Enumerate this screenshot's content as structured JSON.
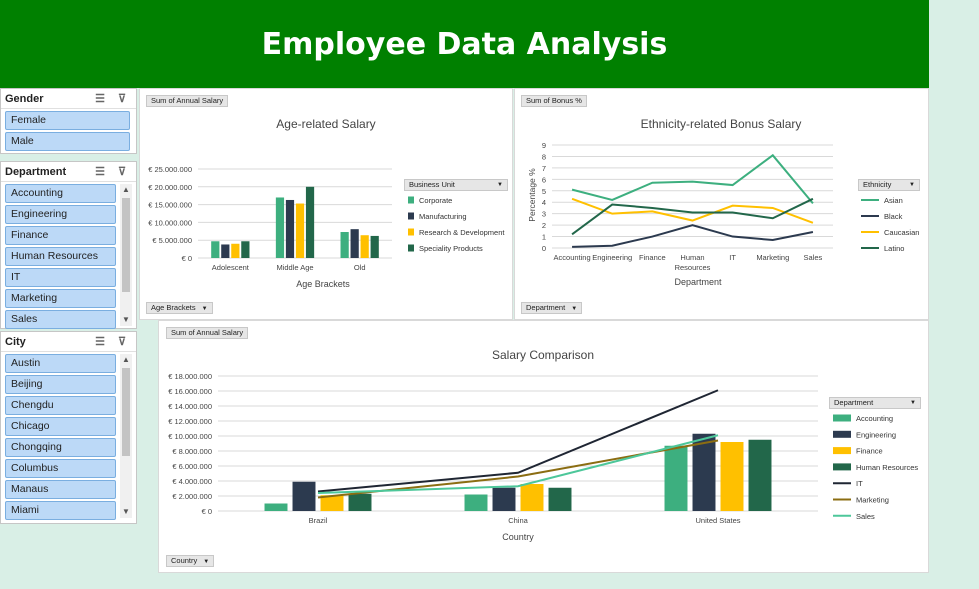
{
  "title": "Employee Data Analysis",
  "slicers": {
    "gender": {
      "title": "Gender",
      "items": [
        "Female",
        "Male"
      ]
    },
    "department": {
      "title": "Department",
      "items": [
        "Accounting",
        "Engineering",
        "Finance",
        "Human Resources",
        "IT",
        "Marketing",
        "Sales"
      ]
    },
    "city": {
      "title": "City",
      "items": [
        "Austin",
        "Beijing",
        "Chengdu",
        "Chicago",
        "Chongqing",
        "Columbus",
        "Manaus",
        "Miami"
      ]
    }
  },
  "icons": {
    "multi_select": "multi-select-icon",
    "clear_filter": "clear-filter-icon"
  },
  "panels": {
    "age": {
      "value_field": "Sum of Annual Salary",
      "axis_field": "Age Brackets",
      "legend_field": "Business Unit"
    },
    "ethnicity": {
      "value_field": "Sum of Bonus %",
      "axis_field": "Department",
      "legend_field": "Ethnicity"
    },
    "salary": {
      "value_field": "Sum of Annual Salary",
      "axis_field": "Country",
      "legend_field": "Department"
    }
  },
  "colors": {
    "banner": "#008000",
    "green": "#3daf7f",
    "navy": "#2c3a4f",
    "gold": "#ffc000",
    "darkgreen": "#22674a",
    "black": "#1f2633",
    "olive": "#8b6d12",
    "mint": "#4dc79a"
  },
  "chart_data": [
    {
      "type": "bar",
      "title": "Age-related Salary",
      "xlabel": "Age Brackets",
      "ylabel": "",
      "categories": [
        "Adolescent",
        "Middle Age",
        "Old"
      ],
      "series": [
        {
          "name": "Corporate",
          "values": [
            4700000,
            17000000,
            7300000
          ],
          "color": "#3daf7f"
        },
        {
          "name": "Manufacturing",
          "values": [
            3800000,
            16300000,
            8100000
          ],
          "color": "#2c3a4f"
        },
        {
          "name": "Research & Development",
          "values": [
            4000000,
            15300000,
            6400000
          ],
          "color": "#ffc000"
        },
        {
          "name": "Speciality Products",
          "values": [
            4700000,
            20000000,
            6200000
          ],
          "color": "#22674a"
        }
      ],
      "ylim": [
        0,
        25000000
      ],
      "yticks": [
        "€ 0",
        "€ 5.000.000",
        "€ 10.000.000",
        "€ 15.000.000",
        "€ 20.000.000",
        "€ 25.000.000"
      ],
      "grid": true,
      "legend": "right"
    },
    {
      "type": "line",
      "title": "Ethnicity-related Bonus Salary",
      "xlabel": "Department",
      "ylabel": "Percentage %",
      "categories": [
        "Accounting",
        "Engineering",
        "Finance",
        "Human Resources",
        "IT",
        "Marketing",
        "Sales"
      ],
      "series": [
        {
          "name": "Asian",
          "values": [
            5.1,
            4.2,
            5.7,
            5.8,
            5.5,
            8.1,
            3.9
          ],
          "color": "#3daf7f"
        },
        {
          "name": "Black",
          "values": [
            0.1,
            0.2,
            1.0,
            2.0,
            1.0,
            0.7,
            1.4
          ],
          "color": "#2c3a4f"
        },
        {
          "name": "Caucasian",
          "values": [
            4.3,
            3.0,
            3.2,
            2.4,
            3.7,
            3.5,
            2.2
          ],
          "color": "#ffc000"
        },
        {
          "name": "Latino",
          "values": [
            1.2,
            3.8,
            3.5,
            3.1,
            3.1,
            2.6,
            4.3
          ],
          "color": "#22674a"
        }
      ],
      "ylim": [
        0,
        9
      ],
      "yticks": [
        "0",
        "1",
        "2",
        "3",
        "4",
        "5",
        "6",
        "7",
        "8",
        "9"
      ],
      "grid": true,
      "legend": "right"
    },
    {
      "type": "bar",
      "title": "Salary Comparison",
      "xlabel": "Country",
      "ylabel": "",
      "categories": [
        "Brazil",
        "China",
        "United States"
      ],
      "series": [
        {
          "name": "Accounting",
          "kind": "bar",
          "values": [
            1000000,
            2200000,
            8700000
          ],
          "color": "#3daf7f"
        },
        {
          "name": "Engineering",
          "kind": "bar",
          "values": [
            3900000,
            3100000,
            10300000
          ],
          "color": "#2c3a4f"
        },
        {
          "name": "Finance",
          "kind": "bar",
          "values": [
            2100000,
            3600000,
            9200000
          ],
          "color": "#ffc000"
        },
        {
          "name": "Human Resources",
          "kind": "bar",
          "values": [
            2300000,
            3100000,
            9500000
          ],
          "color": "#22674a"
        },
        {
          "name": "IT",
          "kind": "line",
          "values": [
            2600000,
            5100000,
            16100000
          ],
          "color": "#1f2633"
        },
        {
          "name": "Marketing",
          "kind": "line",
          "values": [
            1800000,
            4600000,
            9400000
          ],
          "color": "#8b6d12"
        },
        {
          "name": "Sales",
          "kind": "line",
          "values": [
            2400000,
            3300000,
            10100000
          ],
          "color": "#4dc79a"
        }
      ],
      "ylim": [
        0,
        18000000
      ],
      "yticks": [
        "€ 0",
        "€ 2.000.000",
        "€ 4.000.000",
        "€ 6.000.000",
        "€ 8.000.000",
        "€ 10.000.000",
        "€ 12.000.000",
        "€ 14.000.000",
        "€ 16.000.000",
        "€ 18.000.000"
      ],
      "grid": true,
      "legend": "right"
    }
  ]
}
